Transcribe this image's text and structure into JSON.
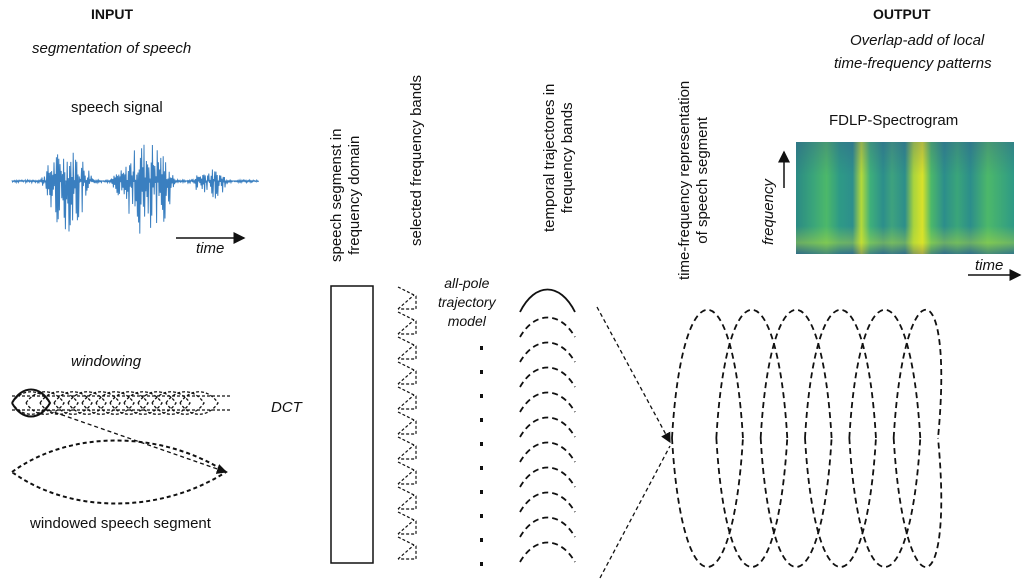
{
  "input": {
    "title": "INPUT",
    "subtitle": "segmentation of speech",
    "signal_label": "speech signal",
    "time_label": "time",
    "windowing_label": "windowing",
    "windowed_label": "windowed speech segment"
  },
  "dct_label": "DCT",
  "columns": {
    "freq_domain": [
      "speech segmenst in",
      "frequency domain"
    ],
    "bands": [
      "selected frequency bands"
    ],
    "trajectories": [
      "temporal trajectores in",
      "frequency bands"
    ],
    "representation": [
      "time-frequency representation",
      "of  speech segment"
    ]
  },
  "model_label": [
    "all-pole",
    "trajectory",
    "model"
  ],
  "output": {
    "title": "OUTPUT",
    "subtitle_line1": "Overlap-add of local",
    "subtitle_line2": "time-frequency patterns",
    "spectrogram_label": "FDLP-Spectrogram",
    "frequency_label": "frequency",
    "time_label": "time"
  },
  "colors": {
    "signal": "#3a7fc0",
    "stroke": "#111111"
  }
}
